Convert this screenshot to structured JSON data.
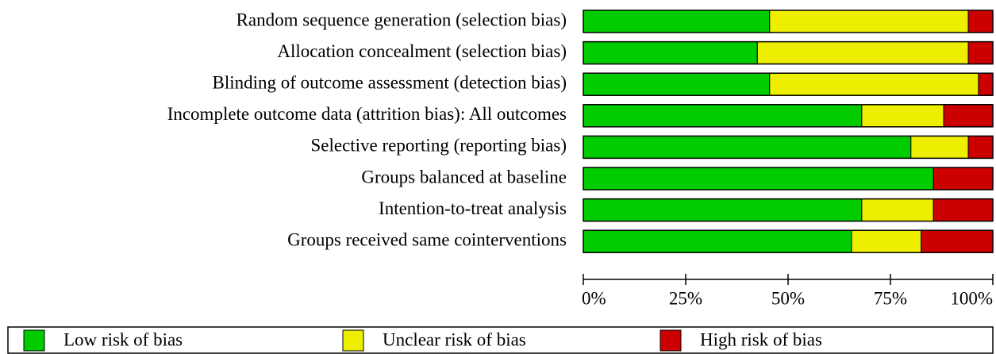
{
  "chart_data": {
    "type": "stacked_bar_horizontal",
    "categories": [
      "Random sequence generation (selection bias)",
      "Allocation concealment (selection bias)",
      "Blinding of outcome assessment (detection bias)",
      "Incomplete outcome data (attrition bias): All outcomes",
      "Selective reporting (reporting bias)",
      "Groups balanced at baseline",
      "Intention-to-treat analysis",
      "Groups received same cointerventions"
    ],
    "series": [
      {
        "name": "Low risk of bias",
        "color": "#00cc00",
        "values": [
          45.5,
          42.5,
          45.5,
          68,
          80,
          85.5,
          68,
          65.5
        ]
      },
      {
        "name": "Unclear risk of bias",
        "color": "#eeee00",
        "values": [
          48.5,
          51.5,
          51,
          20,
          14,
          0,
          17.5,
          17
        ]
      },
      {
        "name": "High risk of bias",
        "color": "#cc0000",
        "values": [
          6,
          6,
          3.5,
          12,
          6,
          14.5,
          14.5,
          17.5
        ]
      }
    ],
    "xlim": [
      0,
      100
    ],
    "xticks": [
      {
        "value": 0,
        "label": "0%"
      },
      {
        "value": 25,
        "label": "25%"
      },
      {
        "value": 50,
        "label": "50%"
      },
      {
        "value": 75,
        "label": "75%"
      },
      {
        "value": 100,
        "label": "100%"
      }
    ]
  }
}
